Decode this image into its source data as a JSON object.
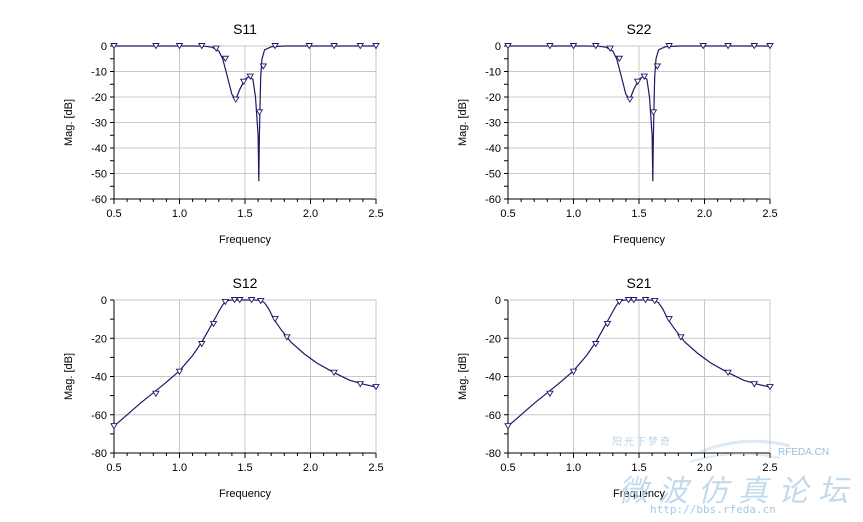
{
  "chart_data": [
    {
      "type": "line",
      "title": "S11",
      "xlabel": "Frequency",
      "ylabel": "Mag. [dB]",
      "xlim": [
        0.5,
        2.5
      ],
      "ylim": [
        -60,
        0
      ],
      "xticks": [
        "0.5",
        "1.0",
        "1.5",
        "2.0",
        "2.5"
      ],
      "yticks": [
        "0",
        "-10",
        "-20",
        "-30",
        "-40",
        "-50",
        "-60"
      ],
      "grid": true,
      "series": [
        {
          "x": [
            0.5,
            0.8,
            1.0,
            1.1,
            1.2,
            1.25,
            1.3,
            1.33,
            1.36,
            1.4,
            1.43,
            1.46,
            1.5,
            1.53,
            1.56,
            1.58,
            1.6,
            1.605,
            1.61,
            1.615,
            1.62,
            1.63,
            1.65,
            1.7,
            1.8,
            2.0,
            2.5
          ],
          "y": [
            0,
            0,
            0,
            0,
            -0.1,
            -0.5,
            -2,
            -5,
            -11,
            -19,
            -21,
            -17,
            -13,
            -12,
            -13,
            -20,
            -35,
            -53,
            -35,
            -22,
            -12,
            -5,
            -1.5,
            -0.3,
            0,
            0,
            0
          ],
          "markers_x": [
            0.5,
            0.82,
            1.0,
            1.17,
            1.28,
            1.35,
            1.43,
            1.49,
            1.54,
            1.61,
            1.64,
            1.73,
            1.99,
            2.18,
            2.38,
            2.5
          ],
          "markers_y": [
            0,
            0,
            0,
            0,
            -1,
            -5,
            -21,
            -14,
            -12,
            -26,
            -8,
            0,
            0,
            0,
            0,
            0
          ]
        }
      ]
    },
    {
      "type": "line",
      "title": "S22",
      "xlabel": "Frequency",
      "ylabel": "Mag. [dB]",
      "xlim": [
        0.5,
        2.5
      ],
      "ylim": [
        -60,
        0
      ],
      "xticks": [
        "0.5",
        "1.0",
        "1.5",
        "2.0",
        "2.5"
      ],
      "yticks": [
        "0",
        "-10",
        "-20",
        "-30",
        "-40",
        "-50",
        "-60"
      ],
      "grid": true,
      "series": [
        {
          "x": [
            0.5,
            0.8,
            1.0,
            1.1,
            1.2,
            1.25,
            1.3,
            1.33,
            1.36,
            1.4,
            1.43,
            1.46,
            1.5,
            1.53,
            1.56,
            1.58,
            1.6,
            1.605,
            1.61,
            1.615,
            1.62,
            1.63,
            1.65,
            1.7,
            1.8,
            2.0,
            2.5
          ],
          "y": [
            0,
            0,
            0,
            0,
            -0.1,
            -0.5,
            -2,
            -5,
            -11,
            -19,
            -21,
            -17,
            -13,
            -12,
            -13,
            -20,
            -35,
            -53,
            -35,
            -22,
            -12,
            -5,
            -1.5,
            -0.3,
            0,
            0,
            0
          ],
          "markers_x": [
            0.5,
            0.82,
            1.0,
            1.17,
            1.28,
            1.35,
            1.43,
            1.49,
            1.54,
            1.61,
            1.64,
            1.73,
            1.99,
            2.18,
            2.38,
            2.5
          ],
          "markers_y": [
            0,
            0,
            0,
            0,
            -1,
            -5,
            -21,
            -14,
            -12,
            -26,
            -8,
            0,
            0,
            0,
            0,
            0
          ]
        }
      ]
    },
    {
      "type": "line",
      "title": "S12",
      "xlabel": "Frequency",
      "ylabel": "Mag. [dB]",
      "xlim": [
        0.5,
        2.5
      ],
      "ylim": [
        -80,
        0
      ],
      "xticks": [
        "0.5",
        "1.0",
        "1.5",
        "2.0",
        "2.5"
      ],
      "yticks": [
        "0",
        "-20",
        "-40",
        "-60",
        "-80"
      ],
      "grid": true,
      "series": [
        {
          "x": [
            0.5,
            0.6,
            0.7,
            0.8,
            0.9,
            1.0,
            1.1,
            1.17,
            1.22,
            1.26,
            1.3,
            1.33,
            1.35,
            1.38,
            1.42,
            1.5,
            1.58,
            1.62,
            1.65,
            1.68,
            1.72,
            1.77,
            1.85,
            1.95,
            2.05,
            2.18,
            2.3,
            2.4,
            2.5
          ],
          "y": [
            -66,
            -60,
            -54,
            -48.5,
            -43,
            -37,
            -29,
            -22,
            -16,
            -11,
            -6,
            -2.5,
            -0.8,
            -0.1,
            0,
            0,
            0,
            -0.2,
            -1.5,
            -4.5,
            -10,
            -15,
            -22,
            -28,
            -33,
            -38,
            -42,
            -44,
            -45.5
          ],
          "markers_x": [
            0.5,
            0.82,
            1.0,
            1.17,
            1.26,
            1.35,
            1.42,
            1.46,
            1.55,
            1.62,
            1.73,
            1.82,
            2.18,
            2.38,
            2.5
          ],
          "markers_y": [
            -66,
            -49,
            -37.5,
            -23,
            -12.5,
            -1,
            0,
            0,
            0,
            -0.5,
            -10,
            -19.5,
            -38,
            -44,
            -45.5
          ]
        }
      ]
    },
    {
      "type": "line",
      "title": "S21",
      "xlabel": "Frequency",
      "ylabel": "Mag. [dB]",
      "xlim": [
        0.5,
        2.5
      ],
      "ylim": [
        -80,
        0
      ],
      "xticks": [
        "0.5",
        "1.0",
        "1.5",
        "2.0",
        "2.5"
      ],
      "yticks": [
        "0",
        "-20",
        "-40",
        "-60",
        "-80"
      ],
      "grid": true,
      "series": [
        {
          "x": [
            0.5,
            0.6,
            0.7,
            0.8,
            0.9,
            1.0,
            1.1,
            1.17,
            1.22,
            1.26,
            1.3,
            1.33,
            1.35,
            1.38,
            1.42,
            1.5,
            1.58,
            1.62,
            1.65,
            1.68,
            1.72,
            1.77,
            1.85,
            1.95,
            2.05,
            2.18,
            2.3,
            2.4,
            2.5
          ],
          "y": [
            -66,
            -60,
            -54,
            -48.5,
            -43,
            -37,
            -29,
            -22,
            -16,
            -11,
            -6,
            -2.5,
            -0.8,
            -0.1,
            0,
            0,
            0,
            -0.2,
            -1.5,
            -4.5,
            -10,
            -15,
            -22,
            -28,
            -33,
            -38,
            -42,
            -44,
            -45.5
          ],
          "markers_x": [
            0.5,
            0.82,
            1.0,
            1.17,
            1.26,
            1.35,
            1.42,
            1.46,
            1.55,
            1.62,
            1.73,
            1.82,
            2.18,
            2.38,
            2.5
          ],
          "markers_y": [
            -66,
            -49,
            -37.5,
            -23,
            -12.5,
            -1,
            0,
            0,
            0,
            -0.5,
            -10,
            -19.5,
            -38,
            -44,
            -45.5
          ]
        }
      ]
    }
  ],
  "colors": {
    "curve": "#1a1a66",
    "grid": "#c8c8c8",
    "axis": "#000000",
    "watermark": "#9fc3e2"
  },
  "watermark": {
    "cn_large": "微波仿真论坛",
    "cn_small": "阳光下梦奇",
    "url": "http://bbs.rfeda.cn",
    "brand": "RFEDA.CN"
  }
}
